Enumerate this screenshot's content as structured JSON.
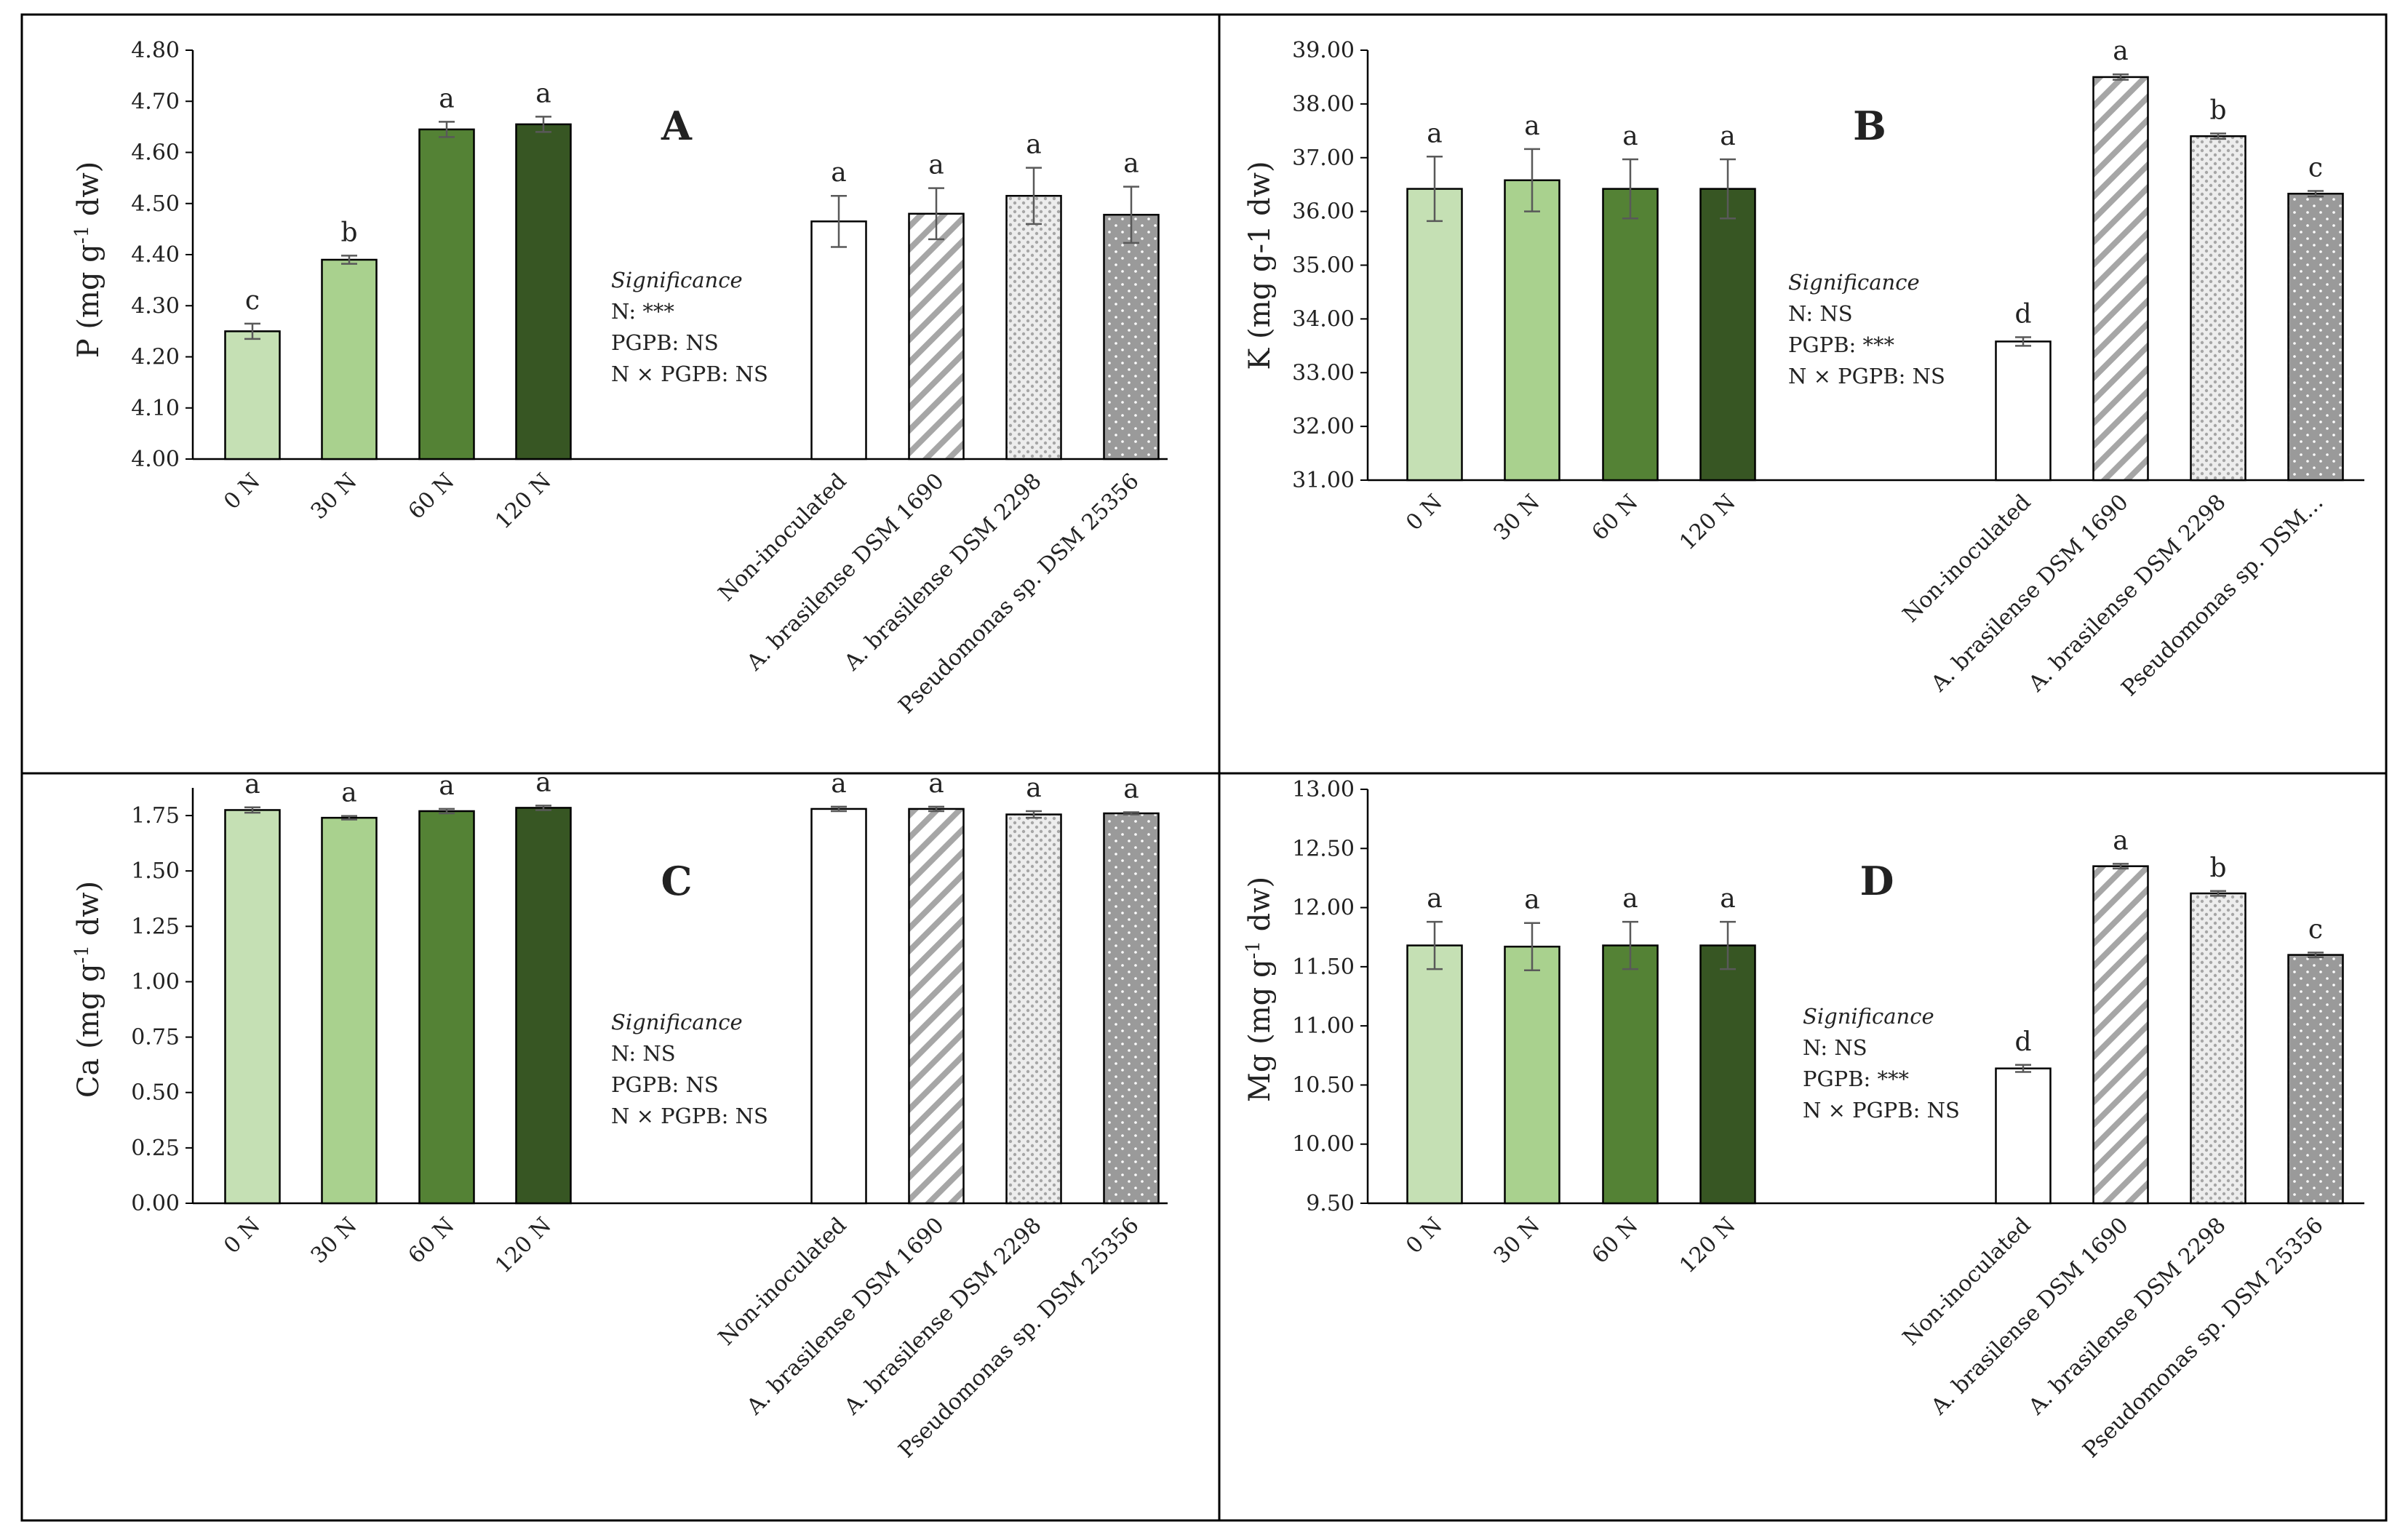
{
  "colors": {
    "n0": "#c5e0b4",
    "n30": "#a9d18e",
    "n60": "#548235",
    "n120": "#375623",
    "noninoc": "#ffffff",
    "hatch": "#a6a6a6",
    "dots_light": "#a6a6a6",
    "dots_dark": "#9a9a9a",
    "axis": "#000000"
  },
  "chart_data": [
    {
      "type": "bar",
      "panel": "A",
      "ylabel_main": "P (mg g",
      "ylabel_sup": "-1",
      "ylabel_tail": " dw)",
      "ylim": [
        4.0,
        4.8
      ],
      "yticks": [
        "4.00",
        "4.10",
        "4.20",
        "4.30",
        "4.40",
        "4.50",
        "4.60",
        "4.70",
        "4.80"
      ],
      "categories": [
        "0 N",
        "30 N",
        "60 N",
        "120 N",
        "Non-inoculated",
        "A. brasilense DSM 1690",
        "A. brasilense DSM 2298",
        "Pseudomonas sp. DSM 25356"
      ],
      "values": [
        4.25,
        4.39,
        4.645,
        4.655,
        4.465,
        4.48,
        4.515,
        4.478
      ],
      "errors": [
        0.015,
        0.008,
        0.015,
        0.015,
        0.05,
        0.05,
        0.055,
        0.055
      ],
      "letters": [
        "c",
        "b",
        "a",
        "a",
        "a",
        "a",
        "a",
        "a"
      ],
      "significance": {
        "title": "Significance",
        "lines": [
          "N: ***",
          "PGPB: NS",
          "N × PGPB: NS"
        ]
      }
    },
    {
      "type": "bar",
      "panel": "B",
      "ylabel_main": "K (mg g-1 dw)",
      "ylim": [
        31.0,
        39.0
      ],
      "yticks": [
        "31.00",
        "32.00",
        "33.00",
        "34.00",
        "35.00",
        "36.00",
        "37.00",
        "38.00",
        "39.00"
      ],
      "categories": [
        "0 N",
        "30 N",
        "60 N",
        "120 N",
        "Non-inoculated",
        "A. brasilense DSM 1690",
        "A. brasilense DSM 2298",
        "Pseudomonas sp. DSM…"
      ],
      "values": [
        36.42,
        36.58,
        36.42,
        36.42,
        33.58,
        38.5,
        37.4,
        36.33
      ],
      "errors": [
        0.6,
        0.58,
        0.55,
        0.55,
        0.08,
        0.05,
        0.05,
        0.05
      ],
      "letters": [
        "a",
        "a",
        "a",
        "a",
        "d",
        "a",
        "b",
        "c"
      ],
      "significance": {
        "title": "Significance",
        "lines": [
          "N: NS",
          "PGPB: ***",
          "N × PGPB: NS"
        ]
      }
    },
    {
      "type": "bar",
      "panel": "C",
      "ylabel_main": "Ca (mg g",
      "ylabel_sup": "-1",
      "ylabel_tail": " dw)",
      "ylim": [
        0.0,
        1.875
      ],
      "yticks": [
        "0.00",
        "0.25",
        "0.50",
        "0.75",
        "1.00",
        "1.25",
        "1.50",
        "1.75"
      ],
      "categories": [
        "0 N",
        "30 N",
        "60 N",
        "120 N",
        "Non-inoculated",
        "A. brasilense DSM 1690",
        "A. brasilense DSM 2298",
        "Pseudomonas sp. DSM 25356"
      ],
      "values": [
        1.775,
        1.74,
        1.77,
        1.785,
        1.78,
        1.78,
        1.755,
        1.76
      ],
      "errors": [
        0.012,
        0.008,
        0.01,
        0.01,
        0.01,
        0.01,
        0.015,
        0.005
      ],
      "letters": [
        "a",
        "a",
        "a",
        "a",
        "a",
        "a",
        "a",
        "a"
      ],
      "significance": {
        "title": "Significance",
        "lines": [
          "N: NS",
          "PGPB: NS",
          "N × PGPB: NS"
        ]
      }
    },
    {
      "type": "bar",
      "panel": "D",
      "ylabel_main": "Mg (mg g",
      "ylabel_sup": "-1",
      "ylabel_tail": " dw)",
      "ylim": [
        9.5,
        13.0
      ],
      "yticks": [
        "9.50",
        "10.00",
        "10.50",
        "11.00",
        "11.50",
        "12.00",
        "12.50",
        "13.00"
      ],
      "categories": [
        "0 N",
        "30 N",
        "60 N",
        "120 N",
        "Non-inoculated",
        "A. brasilense DSM 1690",
        "A. brasilense DSM 2298",
        "Pseudomonas sp. DSM 25356"
      ],
      "values": [
        11.68,
        11.67,
        11.68,
        11.68,
        10.64,
        12.35,
        12.12,
        11.6
      ],
      "errors": [
        0.2,
        0.2,
        0.2,
        0.2,
        0.03,
        0.02,
        0.02,
        0.02
      ],
      "letters": [
        "a",
        "a",
        "a",
        "a",
        "d",
        "a",
        "b",
        "c"
      ],
      "significance": {
        "title": "Significance",
        "lines": [
          "N: NS",
          "PGPB: ***",
          "N × PGPB: NS"
        ]
      }
    }
  ]
}
